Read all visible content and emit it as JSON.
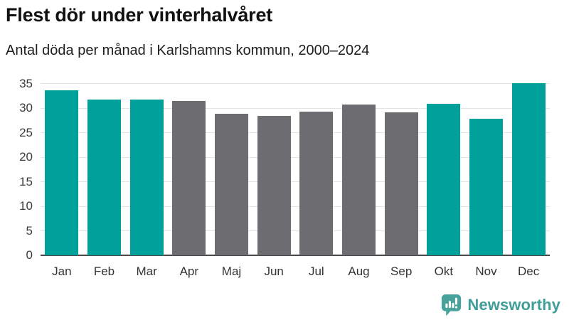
{
  "header": {
    "title": "Flest dör under vinterhalvåret",
    "subtitle": "Antal döda per månad i Karlshamns kommun, 2000–2024"
  },
  "chart_data": {
    "type": "bar",
    "title": "Flest dör under vinterhalvåret",
    "subtitle": "Antal döda per månad i Karlshamns kommun, 2000–2024",
    "categories": [
      "Jan",
      "Feb",
      "Mar",
      "Apr",
      "Maj",
      "Jun",
      "Jul",
      "Aug",
      "Sep",
      "Okt",
      "Nov",
      "Dec"
    ],
    "values": [
      33.6,
      31.7,
      31.7,
      31.5,
      28.8,
      28.4,
      29.3,
      30.7,
      29.2,
      30.8,
      27.8,
      35.1
    ],
    "highlighted": [
      true,
      true,
      true,
      false,
      false,
      false,
      false,
      false,
      false,
      true,
      true,
      true
    ],
    "xlabel": "",
    "ylabel": "",
    "ylim": [
      0,
      35
    ],
    "yticks": [
      0,
      5,
      10,
      15,
      20,
      25,
      30,
      35
    ],
    "grid": "horizontal",
    "legend": "none"
  },
  "colors": {
    "highlight_bar": "#00a09b",
    "muted_bar": "#6d6d71",
    "gridline": "#e4e4e4",
    "axis_line": "#4a4a4a",
    "tick_text": "#3b3b3b",
    "logo": "#47a29b",
    "brand_text": "#3f9e98"
  },
  "footer": {
    "brand": "Newsworthy"
  }
}
